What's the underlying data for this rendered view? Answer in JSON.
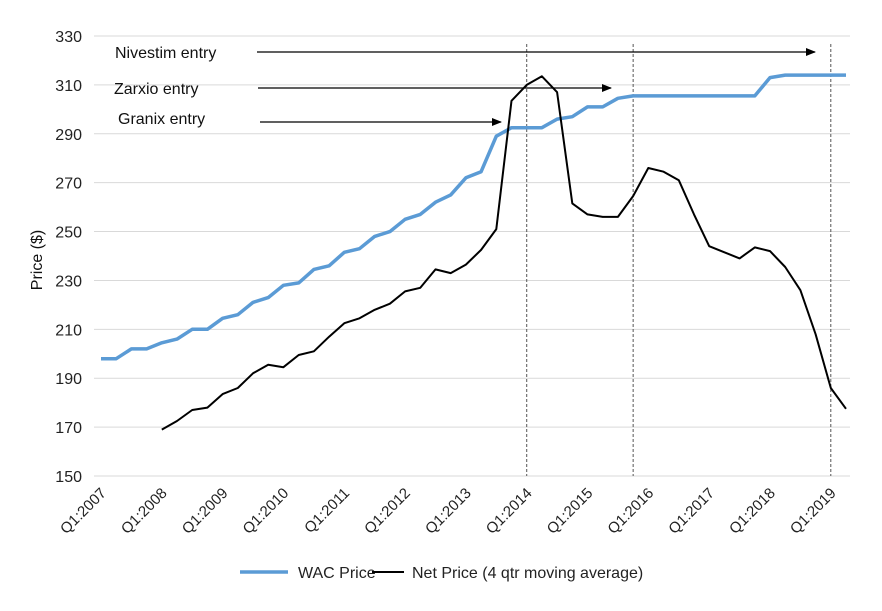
{
  "chart_data": {
    "type": "line",
    "title": "",
    "xlabel": "",
    "ylabel": "Price ($)",
    "ylim": [
      150,
      330
    ],
    "yticks": [
      150,
      170,
      190,
      210,
      230,
      250,
      270,
      290,
      310,
      330
    ],
    "grid": true,
    "legend_position": "bottom",
    "x_tick_labels": [
      "Q1:2007",
      "Q1:2008",
      "Q1:2009",
      "Q1:2010",
      "Q1:2011",
      "Q1:2012",
      "Q1:2013",
      "Q1:2014",
      "Q1:2015",
      "Q1:2016",
      "Q1:2017",
      "Q1:2018",
      "Q1:2019"
    ],
    "x_quarters": [
      "Q1:2007",
      "Q2:2007",
      "Q3:2007",
      "Q4:2007",
      "Q1:2008",
      "Q2:2008",
      "Q3:2008",
      "Q4:2008",
      "Q1:2009",
      "Q2:2009",
      "Q3:2009",
      "Q4:2009",
      "Q1:2010",
      "Q2:2010",
      "Q3:2010",
      "Q4:2010",
      "Q1:2011",
      "Q2:2011",
      "Q3:2011",
      "Q4:2011",
      "Q1:2012",
      "Q2:2012",
      "Q3:2012",
      "Q4:2012",
      "Q1:2013",
      "Q2:2013",
      "Q3:2013",
      "Q4:2013",
      "Q1:2014",
      "Q2:2014",
      "Q3:2014",
      "Q4:2014",
      "Q1:2015",
      "Q2:2015",
      "Q3:2015",
      "Q4:2015",
      "Q1:2016",
      "Q2:2016",
      "Q3:2016",
      "Q4:2016",
      "Q1:2017",
      "Q2:2017",
      "Q3:2017",
      "Q4:2017",
      "Q1:2018",
      "Q2:2018",
      "Q3:2018",
      "Q4:2018",
      "Q1:2019",
      "Q2:2019"
    ],
    "series": [
      {
        "name": "WAC Price",
        "color": "#5b9bd5",
        "values": [
          198,
          198,
          202,
          202,
          204.5,
          206,
          210,
          210,
          214.5,
          216,
          221,
          223,
          228,
          229,
          234.5,
          236,
          241.5,
          243,
          248,
          250,
          255,
          257,
          262,
          265,
          272,
          274.5,
          289,
          292.5,
          292.5,
          292.5,
          296,
          297,
          301,
          301,
          304.5,
          305.5,
          305.5,
          305.5,
          305.5,
          305.5,
          305.5,
          305.5,
          305.5,
          305.5,
          313,
          314,
          314,
          314,
          314,
          314
        ]
      },
      {
        "name": "Net Price (4 qtr moving average)",
        "color": "#000000",
        "values": [
          null,
          null,
          null,
          null,
          169,
          172.5,
          177,
          178,
          183.5,
          186,
          192,
          195.5,
          194.5,
          199.5,
          201,
          207,
          212.5,
          214.5,
          218,
          220.5,
          225.5,
          227,
          234.5,
          233,
          236.5,
          242.5,
          251,
          303.5,
          310,
          313.5,
          307,
          261.5,
          257,
          256,
          256,
          264.5,
          276,
          274.5,
          271,
          257,
          244,
          241.5,
          239,
          243.5,
          242,
          235.5,
          226,
          208,
          186,
          177.5
        ]
      }
    ],
    "annotations": [
      {
        "label": "Nivestim entry",
        "target_quarter": "Q4:2018"
      },
      {
        "label": "Zarxio entry",
        "target_quarter": "Q4:2015"
      },
      {
        "label": "Granix entry",
        "target_quarter": "Q4:2013"
      }
    ],
    "vertical_lines": [
      "Q1:2014",
      "Q4:2015",
      "Q1:2019"
    ]
  }
}
